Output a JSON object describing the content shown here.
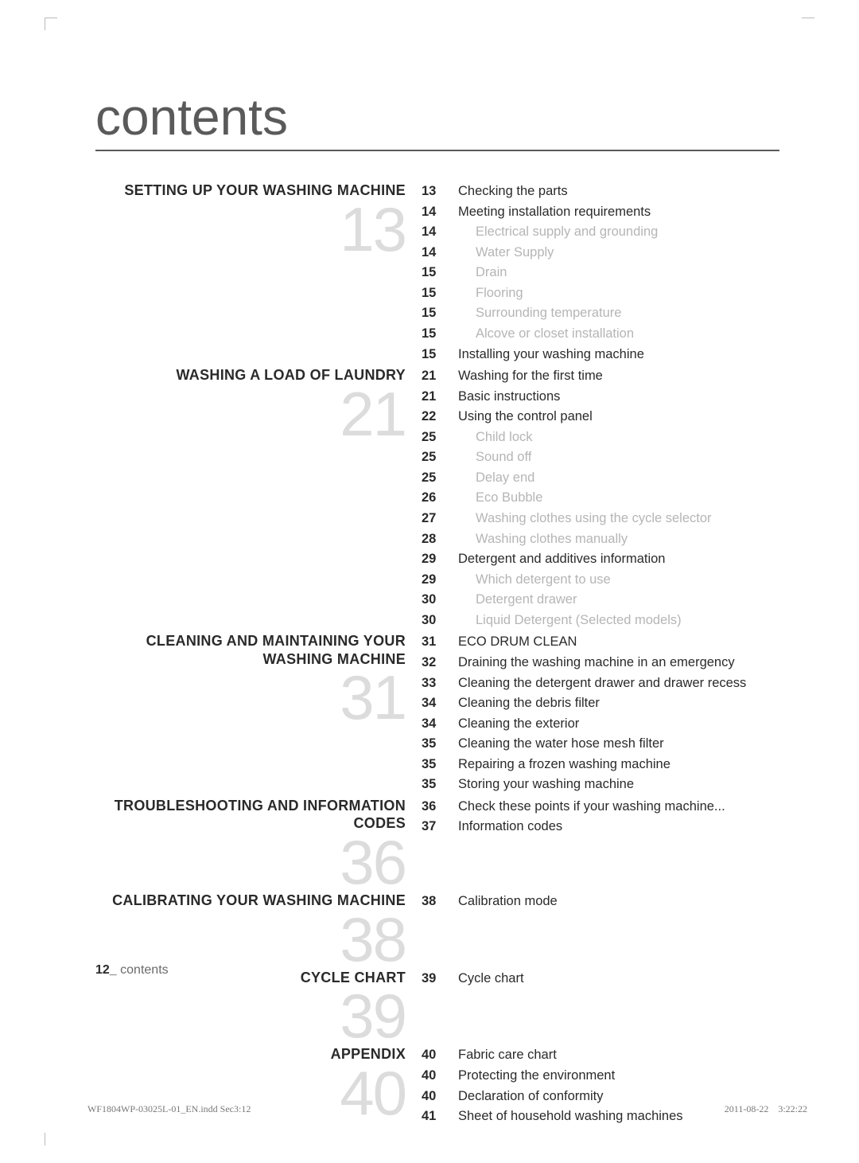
{
  "title": "contents",
  "footer": {
    "page_number": "12_",
    "label": "contents"
  },
  "print": {
    "file": "WF1804WP-03025L-01_EN.indd   Sec3:12",
    "date": "2011-08-22",
    "time": "3:22:22"
  },
  "colors": {
    "title": "#5a5a5a",
    "underline": "#5a5a5a",
    "bignum": "#dcdcdc",
    "subtext": "#b5b5b5",
    "text": "#2a2a2a",
    "bg": "#ffffff"
  },
  "typography": {
    "title_fontsize": 64,
    "section_fontsize": 18,
    "bignum_fontsize": 78,
    "row_fontsize": 16.5
  },
  "sections": [
    {
      "title": "SETTING UP YOUR WASHING MACHINE",
      "num": "13",
      "entries": [
        {
          "pg": "13",
          "txt": "Checking the parts"
        },
        {
          "pg": "14",
          "txt": "Meeting installation requirements"
        },
        {
          "pg": "14",
          "txt": "Electrical supply and grounding",
          "sub": true
        },
        {
          "pg": "14",
          "txt": "Water Supply",
          "sub": true
        },
        {
          "pg": "15",
          "txt": "Drain",
          "sub": true
        },
        {
          "pg": "15",
          "txt": "Flooring",
          "sub": true
        },
        {
          "pg": "15",
          "txt": "Surrounding temperature",
          "sub": true
        },
        {
          "pg": "15",
          "txt": "Alcove or closet installation",
          "sub": true
        },
        {
          "pg": "15",
          "txt": "Installing your washing machine"
        }
      ]
    },
    {
      "title": "WASHING A LOAD OF LAUNDRY",
      "num": "21",
      "entries": [
        {
          "pg": "21",
          "txt": "Washing for the first time"
        },
        {
          "pg": "21",
          "txt": "Basic instructions"
        },
        {
          "pg": "22",
          "txt": "Using the control panel"
        },
        {
          "pg": "25",
          "txt": "Child lock",
          "sub": true
        },
        {
          "pg": "25",
          "txt": "Sound off",
          "sub": true
        },
        {
          "pg": "25",
          "txt": "Delay end",
          "sub": true
        },
        {
          "pg": "26",
          "txt": "Eco Bubble",
          "sub": true
        },
        {
          "pg": "27",
          "txt": "Washing clothes using the cycle selector",
          "sub": true
        },
        {
          "pg": "28",
          "txt": "Washing clothes manually",
          "sub": true
        },
        {
          "pg": "29",
          "txt": "Detergent and additives information"
        },
        {
          "pg": "29",
          "txt": "Which detergent to use",
          "sub": true
        },
        {
          "pg": "30",
          "txt": "Detergent drawer",
          "sub": true
        },
        {
          "pg": "30",
          "txt": "Liquid Detergent (Selected models)",
          "sub": true
        }
      ]
    },
    {
      "title": "CLEANING AND MAINTAINING YOUR WASHING MACHINE",
      "num": "31",
      "entries": [
        {
          "pg": "31",
          "txt": "ECO DRUM CLEAN"
        },
        {
          "pg": "32",
          "txt": "Draining the washing machine in an emergency"
        },
        {
          "pg": "33",
          "txt": "Cleaning the detergent drawer and drawer recess"
        },
        {
          "pg": "34",
          "txt": "Cleaning the debris filter"
        },
        {
          "pg": "34",
          "txt": "Cleaning the exterior"
        },
        {
          "pg": "35",
          "txt": "Cleaning the water hose mesh filter"
        },
        {
          "pg": "35",
          "txt": "Repairing a frozen washing machine"
        },
        {
          "pg": "35",
          "txt": "Storing your washing machine"
        }
      ]
    },
    {
      "title": "TROUBLESHOOTING AND INFORMATION CODES",
      "num": "36",
      "entries": [
        {
          "pg": "36",
          "txt": "Check these points if your washing machine..."
        },
        {
          "pg": "37",
          "txt": "Information codes"
        }
      ]
    },
    {
      "title": "CALIBRATING YOUR WASHING MACHINE",
      "num": "38",
      "entries": [
        {
          "pg": "38",
          "txt": "Calibration mode"
        }
      ]
    },
    {
      "title": "CYCLE CHART",
      "num": "39",
      "entries": [
        {
          "pg": "39",
          "txt": "Cycle chart"
        }
      ]
    },
    {
      "title": "APPENDIX",
      "num": "40",
      "entries": [
        {
          "pg": "40",
          "txt": "Fabric care chart"
        },
        {
          "pg": "40",
          "txt": "Protecting the environment"
        },
        {
          "pg": "40",
          "txt": "Declaration of conformity"
        },
        {
          "pg": "41",
          "txt": "Sheet of household washing machines"
        }
      ]
    }
  ]
}
